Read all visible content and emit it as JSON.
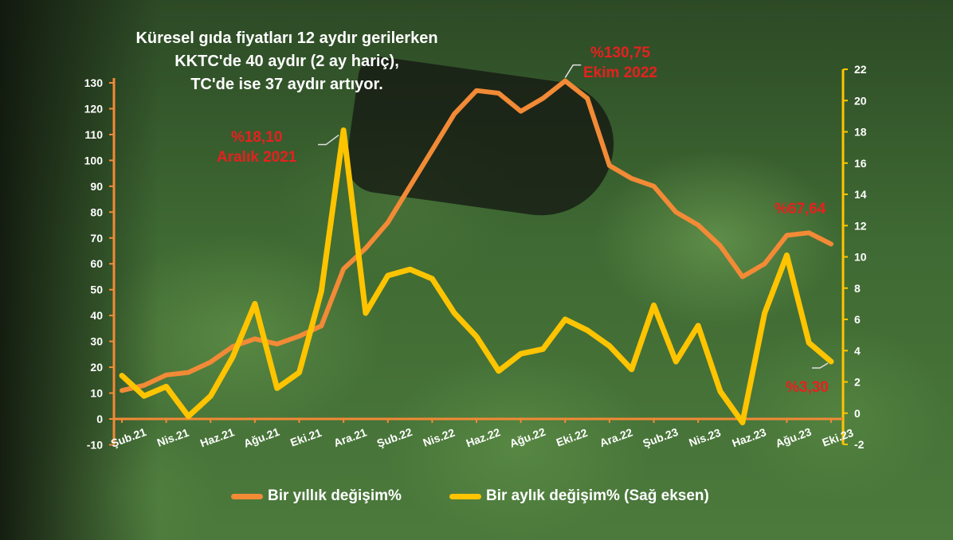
{
  "title_lines": [
    "Küresel gıda fiyatları 12 aydır gerilerken",
    "KKTC'de 40 aydır (2 ay hariç),",
    "TC'de ise 37 aydır artıyor."
  ],
  "colors": {
    "annual": "#f28a36",
    "monthly": "#ffc400",
    "callout": "#e8201f",
    "text": "#ffffff"
  },
  "annotations": {
    "dec21": {
      "value": "%18,10",
      "date": "Aralık 2021"
    },
    "oct22": {
      "value": "%130,75",
      "date": "Ekim 2022"
    },
    "oct23_annual": {
      "value": "%67,64"
    },
    "oct23_monthly": {
      "value": "%3,30"
    }
  },
  "legend": {
    "annual": "Bir yıllık değişim%",
    "monthly": "Bir aylık değişim% (Sağ eksen)"
  },
  "chart_data": {
    "type": "line",
    "x": [
      "Şub.21",
      "Mar.21",
      "Nis.21",
      "May.21",
      "Haz.21",
      "Tem.21",
      "Ağu.21",
      "Eyl.21",
      "Eki.21",
      "Kas.21",
      "Ara.21",
      "Oca.22",
      "Şub.22",
      "Mar.22",
      "Nis.22",
      "May.22",
      "Haz.22",
      "Tem.22",
      "Ağu.22",
      "Eyl.22",
      "Eki.22",
      "Kas.22",
      "Ara.22",
      "Oca.23",
      "Şub.23",
      "Mar.23",
      "Nis.23",
      "May.23",
      "Haz.23",
      "Tem.23",
      "Ağu.23",
      "Eyl.23",
      "Eki.23"
    ],
    "x_tick_labels": [
      "Şub.21",
      "Nis.21",
      "Haz.21",
      "Ağu.21",
      "Eki.21",
      "Ara.21",
      "Şub.22",
      "Nis.22",
      "Haz.22",
      "Ağu.22",
      "Eki.22",
      "Ara.22",
      "Şub.23",
      "Nis.23",
      "Haz.23",
      "Ağu.23",
      "Eki.23"
    ],
    "series": [
      {
        "name": "Bir yıllık değişim%",
        "axis": "left",
        "values": [
          11,
          13,
          17,
          18,
          22,
          28,
          31,
          29,
          32,
          36,
          58,
          66,
          76,
          90,
          104,
          118,
          127,
          126,
          119,
          124,
          130.75,
          124,
          98,
          93,
          90,
          80,
          75,
          67,
          55,
          60,
          71,
          72,
          67.64
        ]
      },
      {
        "name": "Bir aylık değişim% (Sağ eksen)",
        "axis": "right",
        "values": [
          2.4,
          1.1,
          1.7,
          -0.2,
          1.1,
          3.6,
          7.0,
          1.6,
          2.6,
          7.8,
          18.1,
          6.4,
          8.8,
          9.2,
          8.6,
          6.4,
          4.9,
          2.7,
          3.8,
          4.1,
          6.0,
          5.3,
          4.3,
          2.8,
          6.9,
          3.3,
          5.6,
          1.4,
          -0.6,
          6.4,
          10.1,
          4.5,
          3.3
        ]
      }
    ],
    "left_axis": {
      "ylim": [
        -10,
        130
      ],
      "ticks": [
        -10,
        0,
        10,
        20,
        30,
        40,
        50,
        60,
        70,
        80,
        90,
        100,
        110,
        120,
        130
      ]
    },
    "right_axis": {
      "ylim": [
        -2,
        22
      ],
      "ticks": [
        -2,
        0,
        2,
        4,
        6,
        8,
        10,
        12,
        14,
        16,
        18,
        20,
        22
      ]
    },
    "grid": false,
    "legend_position": "bottom"
  }
}
